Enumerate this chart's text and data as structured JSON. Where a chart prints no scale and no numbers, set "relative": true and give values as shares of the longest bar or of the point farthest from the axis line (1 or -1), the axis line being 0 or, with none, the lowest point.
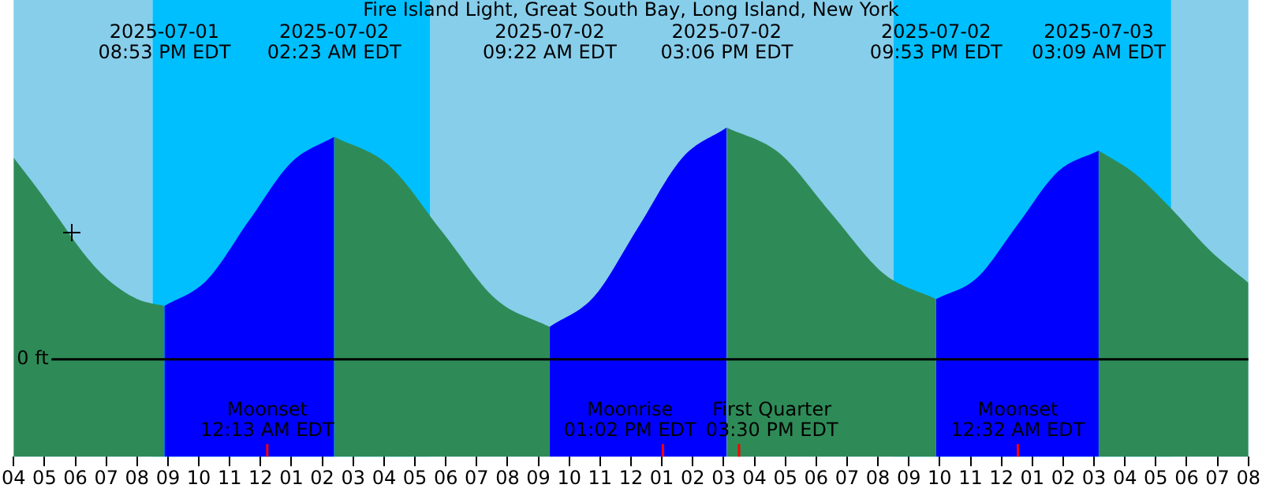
{
  "chart_data": {
    "type": "area",
    "title": "Fire Island Light, Great South Bay, Long Island, New York",
    "relative": true,
    "grid": false,
    "legend": false,
    "marker": "none",
    "series": [
      {
        "color": "#2e8b57",
        "x": [
          "2025-07-01T16:00",
          "2025-07-01T16:45",
          "2025-07-01T17:30",
          "2025-07-01T18:15",
          "2025-07-01T19:00",
          "2025-07-01T20:00",
          "2025-07-01T20:53"
        ],
        "values": [
          0.87,
          0.74,
          0.6,
          0.46,
          0.35,
          0.26,
          0.23
        ]
      },
      {
        "color": "#0000ff",
        "x": [
          "2025-07-01T20:53",
          "2025-07-01T22:15",
          "2025-07-01T23:38",
          "2025-07-02T01:00",
          "2025-07-02T02:23"
        ],
        "values": [
          0.23,
          0.34,
          0.6,
          0.85,
          0.96
        ]
      },
      {
        "color": "#2e8b57",
        "x": [
          "2025-07-02T02:23",
          "2025-07-02T04:08",
          "2025-07-02T05:53",
          "2025-07-02T07:37",
          "2025-07-02T09:22"
        ],
        "values": [
          0.96,
          0.84,
          0.55,
          0.26,
          0.14
        ]
      },
      {
        "color": "#0000ff",
        "x": [
          "2025-07-02T09:22",
          "2025-07-02T10:48",
          "2025-07-02T12:14",
          "2025-07-02T13:40",
          "2025-07-02T15:06"
        ],
        "values": [
          0.14,
          0.27,
          0.57,
          0.87,
          1
        ]
      },
      {
        "color": "#2e8b57",
        "x": [
          "2025-07-02T15:06",
          "2025-07-02T16:48",
          "2025-07-02T18:29",
          "2025-07-02T20:11",
          "2025-07-02T21:53"
        ],
        "values": [
          1,
          0.89,
          0.63,
          0.37,
          0.26
        ]
      },
      {
        "color": "#0000ff",
        "x": [
          "2025-07-02T21:53",
          "2025-07-02T23:12",
          "2025-07-03T00:31",
          "2025-07-03T01:50",
          "2025-07-03T03:09"
        ],
        "values": [
          0.26,
          0.35,
          0.58,
          0.81,
          0.9
        ]
      },
      {
        "color": "#2e8b57",
        "x": [
          "2025-07-03T03:09",
          "2025-07-03T04:20",
          "2025-07-03T05:30",
          "2025-07-03T06:45",
          "2025-07-03T08:00"
        ],
        "values": [
          0.9,
          0.8,
          0.65,
          0.47,
          0.33
        ]
      }
    ],
    "xlim": [
      "2025-07-01T16:00",
      "2025-07-03T08:00"
    ],
    "xticks": [
      {
        "value": "2025-07-01T16:00",
        "label": "04"
      },
      {
        "value": "2025-07-01T17:00",
        "label": "05"
      },
      {
        "value": "2025-07-01T18:00",
        "label": "06"
      },
      {
        "value": "2025-07-01T19:00",
        "label": "07"
      },
      {
        "value": "2025-07-01T20:00",
        "label": "08"
      },
      {
        "value": "2025-07-01T21:00",
        "label": "09"
      },
      {
        "value": "2025-07-01T22:00",
        "label": "10"
      },
      {
        "value": "2025-07-01T23:00",
        "label": "11"
      },
      {
        "value": "2025-07-02T00:00",
        "label": "12"
      },
      {
        "value": "2025-07-02T01:00",
        "label": "01"
      },
      {
        "value": "2025-07-02T02:00",
        "label": "02"
      },
      {
        "value": "2025-07-02T03:00",
        "label": "03"
      },
      {
        "value": "2025-07-02T04:00",
        "label": "04"
      },
      {
        "value": "2025-07-02T05:00",
        "label": "05"
      },
      {
        "value": "2025-07-02T06:00",
        "label": "06"
      },
      {
        "value": "2025-07-02T07:00",
        "label": "07"
      },
      {
        "value": "2025-07-02T08:00",
        "label": "08"
      },
      {
        "value": "2025-07-02T09:00",
        "label": "09"
      },
      {
        "value": "2025-07-02T10:00",
        "label": "10"
      },
      {
        "value": "2025-07-02T11:00",
        "label": "11"
      },
      {
        "value": "2025-07-02T12:00",
        "label": "12"
      },
      {
        "value": "2025-07-02T13:00",
        "label": "01"
      },
      {
        "value": "2025-07-02T14:00",
        "label": "02"
      },
      {
        "value": "2025-07-02T15:00",
        "label": "03"
      },
      {
        "value": "2025-07-02T16:00",
        "label": "04"
      },
      {
        "value": "2025-07-02T17:00",
        "label": "05"
      },
      {
        "value": "2025-07-02T18:00",
        "label": "06"
      },
      {
        "value": "2025-07-02T19:00",
        "label": "07"
      },
      {
        "value": "2025-07-02T20:00",
        "label": "08"
      },
      {
        "value": "2025-07-02T21:00",
        "label": "09"
      },
      {
        "value": "2025-07-02T22:00",
        "label": "10"
      },
      {
        "value": "2025-07-02T23:00",
        "label": "11"
      },
      {
        "value": "2025-07-03T00:00",
        "label": "12"
      },
      {
        "value": "2025-07-03T01:00",
        "label": "01"
      },
      {
        "value": "2025-07-03T02:00",
        "label": "02"
      },
      {
        "value": "2025-07-03T03:00",
        "label": "03"
      },
      {
        "value": "2025-07-03T04:00",
        "label": "04"
      },
      {
        "value": "2025-07-03T05:00",
        "label": "05"
      },
      {
        "value": "2025-07-03T06:00",
        "label": "06"
      },
      {
        "value": "2025-07-03T07:00",
        "label": "07"
      },
      {
        "value": "2025-07-03T08:00",
        "label": "08"
      }
    ],
    "bands": [
      {
        "axis": "x",
        "from": "2025-07-01T16:00",
        "to": "2025-07-01T20:30",
        "color": "#87ceeb"
      },
      {
        "axis": "x",
        "from": "2025-07-01T20:30",
        "to": "2025-07-02T05:30",
        "color": "#00bfff"
      },
      {
        "axis": "x",
        "from": "2025-07-02T05:30",
        "to": "2025-07-02T20:30",
        "color": "#87ceeb"
      },
      {
        "axis": "x",
        "from": "2025-07-02T20:30",
        "to": "2025-07-03T05:30",
        "color": "#00bfff"
      },
      {
        "axis": "x",
        "from": "2025-07-03T05:30",
        "to": "2025-07-03T08:00",
        "color": "#87ceeb"
      }
    ],
    "ref_lines": [
      {
        "axis": "y",
        "value": 0,
        "label": "0 ft",
        "color": "#000000"
      },
      {
        "axis": "x",
        "value": "2025-07-02T00:13",
        "label": "Moonset\n12:13 AM EDT",
        "color": "#ff0000"
      },
      {
        "axis": "x",
        "value": "2025-07-02T13:02",
        "label": "Moonrise\n01:02 PM EDT",
        "color": "#ff0000"
      },
      {
        "axis": "x",
        "value": "2025-07-02T15:30",
        "label": "First Quarter\n03:30 PM EDT",
        "color": "#ff0000"
      },
      {
        "axis": "x",
        "value": "2025-07-03T00:32",
        "label": "Moonset\n12:32 AM EDT",
        "color": "#ff0000"
      }
    ],
    "annotations": [
      "2025-07-01\n08:53 PM EDT",
      "2025-07-02\n02:23 AM EDT",
      "2025-07-02\n09:22 AM EDT",
      "2025-07-02\n03:06 PM EDT",
      "2025-07-02\n09:53 PM EDT",
      "2025-07-03\n03:09 AM EDT"
    ]
  }
}
